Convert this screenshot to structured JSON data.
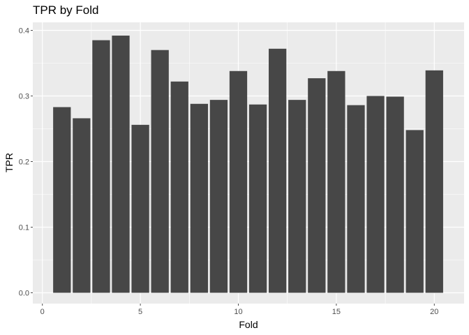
{
  "chart_data": {
    "type": "bar",
    "title": "TPR by Fold",
    "xlabel": "Fold",
    "ylabel": "TPR",
    "x": [
      1,
      2,
      3,
      4,
      5,
      6,
      7,
      8,
      9,
      10,
      11,
      12,
      13,
      14,
      15,
      16,
      17,
      18,
      19,
      20
    ],
    "values": [
      0.283,
      0.266,
      0.385,
      0.392,
      0.256,
      0.37,
      0.322,
      0.288,
      0.294,
      0.338,
      0.287,
      0.372,
      0.294,
      0.327,
      0.338,
      0.286,
      0.3,
      0.299,
      0.248,
      0.339
    ],
    "xlim": [
      0,
      21
    ],
    "ylim": [
      0,
      0.4
    ],
    "x_ticks": [
      "0",
      "5",
      "10",
      "15",
      "20"
    ],
    "y_ticks": [
      "0.0",
      "0.1",
      "0.2",
      "0.3",
      "0.4"
    ],
    "grid": true,
    "legend": "none",
    "colors": {
      "panel": "#EBEBEB",
      "grid": "#FFFFFF",
      "bar": "#474747",
      "tick": "#4D4D4D"
    }
  }
}
